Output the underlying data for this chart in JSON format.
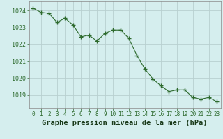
{
  "x": [
    0,
    1,
    2,
    3,
    4,
    5,
    6,
    7,
    8,
    9,
    10,
    11,
    12,
    13,
    14,
    15,
    16,
    17,
    18,
    19,
    20,
    21,
    22,
    23
  ],
  "y": [
    1024.15,
    1023.9,
    1023.85,
    1023.3,
    1023.55,
    1023.15,
    1022.45,
    1022.55,
    1022.2,
    1022.65,
    1022.85,
    1022.85,
    1022.35,
    1021.35,
    1020.55,
    1019.95,
    1019.55,
    1019.2,
    1019.3,
    1019.3,
    1018.85,
    1018.75,
    1018.85,
    1018.6
  ],
  "line_color": "#2d6a2d",
  "marker": "+",
  "marker_size": 4,
  "bg_color": "#d5eeee",
  "grid_color": "#b8d0d0",
  "xlabel": "Graphe pression niveau de la mer (hPa)",
  "xlabel_fontsize": 7.5,
  "xlabel_color": "#1a3a1a",
  "ytick_labels": [
    1019,
    1020,
    1021,
    1022,
    1023,
    1024
  ],
  "ylim": [
    1018.2,
    1024.55
  ],
  "xlim": [
    -0.5,
    23.5
  ],
  "xtick_labels": [
    "0",
    "1",
    "2",
    "3",
    "4",
    "5",
    "6",
    "7",
    "8",
    "9",
    "10",
    "11",
    "12",
    "13",
    "14",
    "15",
    "16",
    "17",
    "18",
    "19",
    "20",
    "21",
    "22",
    "23"
  ],
  "xtick_fontsize": 5.5,
  "ytick_fontsize": 6.0
}
